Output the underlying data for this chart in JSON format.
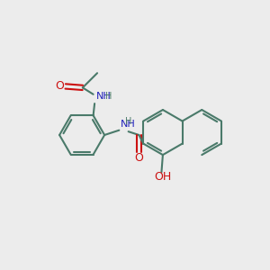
{
  "background_color": "#ececec",
  "bond_color": "#4a7a6a",
  "N_color": "#2222bb",
  "O_color": "#cc1111",
  "line_width": 1.5,
  "fig_size": [
    3.0,
    3.0
  ],
  "dpi": 100,
  "xlim": [
    0,
    10
  ],
  "ylim": [
    0,
    10
  ]
}
